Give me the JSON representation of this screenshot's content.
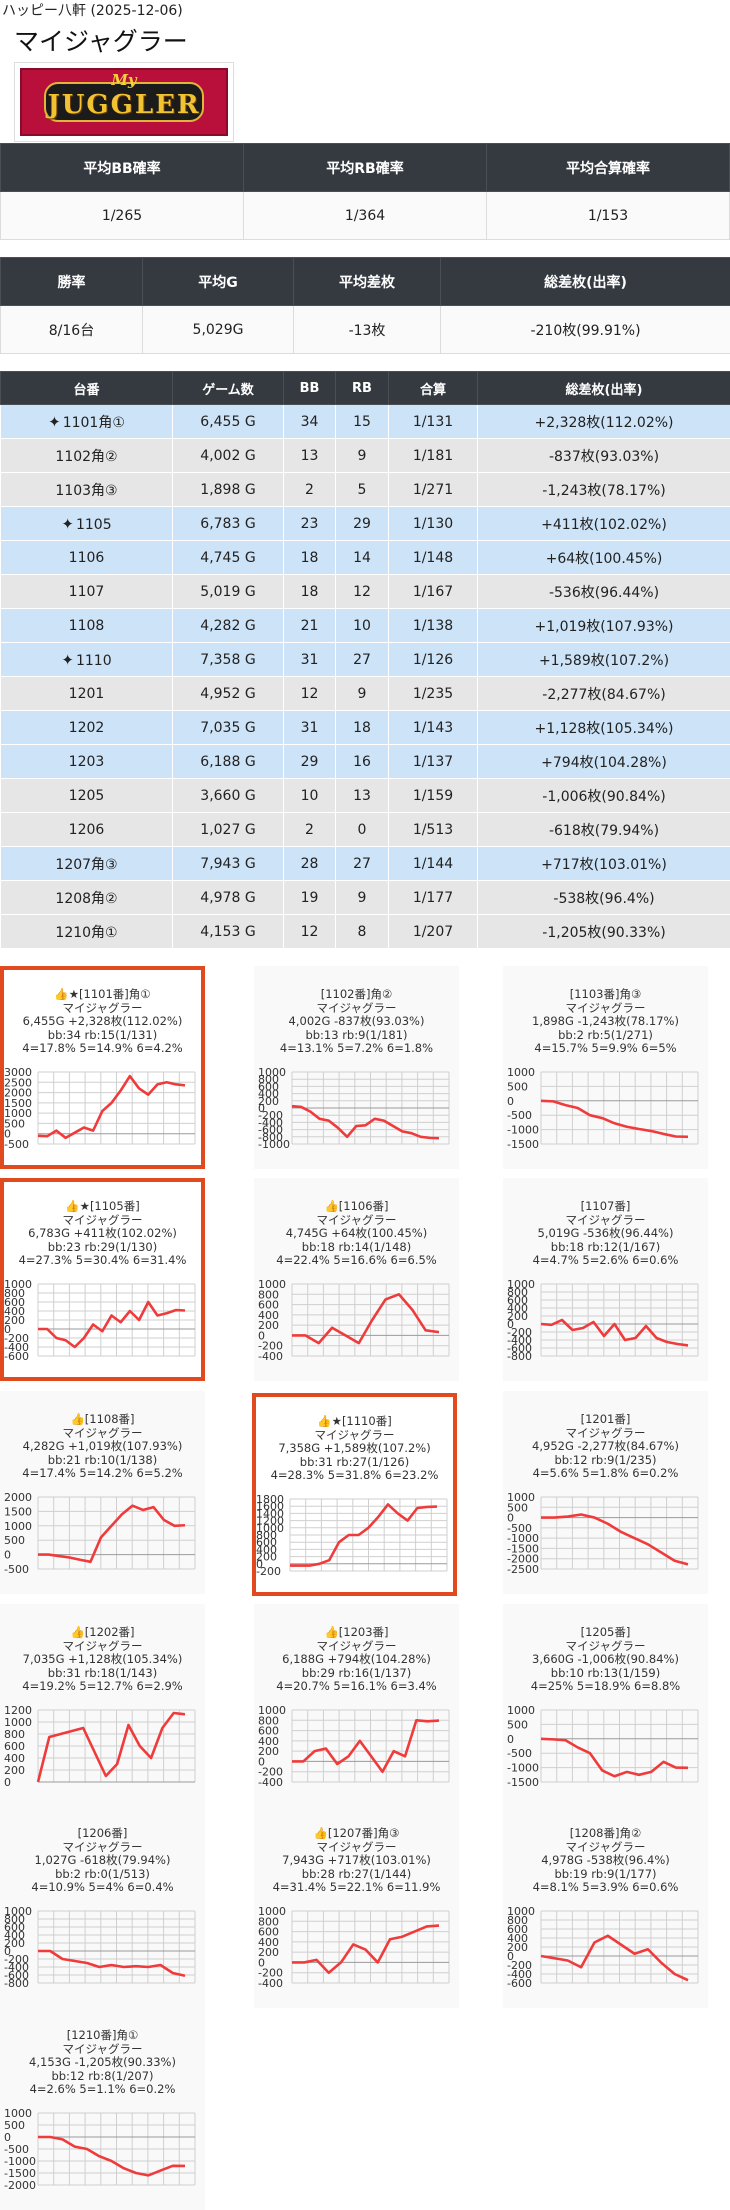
{
  "header": {
    "hall": "ハッピー八軒 (2025-12-06)",
    "title": "マイジャグラー"
  },
  "logo": {
    "line1": "My",
    "line2": "JUGGLER"
  },
  "stats1": {
    "headers": [
      "平均BB確率",
      "平均RB確率",
      "平均合算確率"
    ],
    "values": [
      "1/265",
      "1/364",
      "1/153"
    ]
  },
  "stats2": {
    "headers": [
      "勝率",
      "平均G",
      "平均差枚",
      "総差枚(出率)"
    ],
    "values": [
      "8/16台",
      "5,029G",
      "-13枚",
      "-210枚(99.91%)"
    ]
  },
  "machines": {
    "headers": [
      "台番",
      "ゲーム数",
      "BB",
      "RB",
      "合算",
      "総差枚(出率)"
    ],
    "rows": [
      {
        "num": "1101角①",
        "g": "6,455 G",
        "bb": "34",
        "rb": "15",
        "total": "1/131",
        "diff": "+2,328枚(112.02%)",
        "row": "blue",
        "star": true
      },
      {
        "num": "1102角②",
        "g": "4,002 G",
        "bb": "13",
        "rb": "9",
        "total": "1/181",
        "diff": "-837枚(93.03%)",
        "row": "gray",
        "star": false
      },
      {
        "num": "1103角③",
        "g": "1,898 G",
        "bb": "2",
        "rb": "5",
        "total": "1/271",
        "diff": "-1,243枚(78.17%)",
        "row": "gray",
        "star": false
      },
      {
        "num": "1105",
        "g": "6,783 G",
        "bb": "23",
        "rb": "29",
        "total": "1/130",
        "diff": "+411枚(102.02%)",
        "row": "blue",
        "star": true
      },
      {
        "num": "1106",
        "g": "4,745 G",
        "bb": "18",
        "rb": "14",
        "total": "1/148",
        "diff": "+64枚(100.45%)",
        "row": "blue",
        "star": false
      },
      {
        "num": "1107",
        "g": "5,019 G",
        "bb": "18",
        "rb": "12",
        "total": "1/167",
        "diff": "-536枚(96.44%)",
        "row": "gray",
        "star": false
      },
      {
        "num": "1108",
        "g": "4,282 G",
        "bb": "21",
        "rb": "10",
        "total": "1/138",
        "diff": "+1,019枚(107.93%)",
        "row": "blue",
        "star": false
      },
      {
        "num": "1110",
        "g": "7,358 G",
        "bb": "31",
        "rb": "27",
        "total": "1/126",
        "diff": "+1,589枚(107.2%)",
        "row": "blue",
        "star": true
      },
      {
        "num": "1201",
        "g": "4,952 G",
        "bb": "12",
        "rb": "9",
        "total": "1/235",
        "diff": "-2,277枚(84.67%)",
        "row": "gray",
        "star": false
      },
      {
        "num": "1202",
        "g": "7,035 G",
        "bb": "31",
        "rb": "18",
        "total": "1/143",
        "diff": "+1,128枚(105.34%)",
        "row": "blue",
        "star": false
      },
      {
        "num": "1203",
        "g": "6,188 G",
        "bb": "29",
        "rb": "16",
        "total": "1/137",
        "diff": "+794枚(104.28%)",
        "row": "blue",
        "star": false
      },
      {
        "num": "1205",
        "g": "3,660 G",
        "bb": "10",
        "rb": "13",
        "total": "1/159",
        "diff": "-1,006枚(90.84%)",
        "row": "gray",
        "star": false
      },
      {
        "num": "1206",
        "g": "1,027 G",
        "bb": "2",
        "rb": "0",
        "total": "1/513",
        "diff": "-618枚(79.94%)",
        "row": "gray",
        "star": false
      },
      {
        "num": "1207角③",
        "g": "7,943 G",
        "bb": "28",
        "rb": "27",
        "total": "1/144",
        "diff": "+717枚(103.01%)",
        "row": "blue",
        "star": false
      },
      {
        "num": "1208角②",
        "g": "4,978 G",
        "bb": "19",
        "rb": "9",
        "total": "1/177",
        "diff": "-538枚(96.4%)",
        "row": "gray",
        "star": false
      },
      {
        "num": "1210角①",
        "g": "4,153 G",
        "bb": "12",
        "rb": "8",
        "total": "1/207",
        "diff": "-1,205枚(90.33%)",
        "row": "gray",
        "star": false
      }
    ]
  },
  "cards": [
    {
      "title": "👍★[1101番]角①",
      "model": "マイジャグラー",
      "l1": "6,455G +2,328枚(112.02%)",
      "l2": "bb:34 rb:15(1/131)",
      "l3": "4=17.8% 5=14.9% 6=4.2%"
    },
    {
      "title": "[1102番]角②",
      "model": "マイジャグラー",
      "l1": "4,002G -837枚(93.03%)",
      "l2": "bb:13 rb:9(1/181)",
      "l3": "4=13.1% 5=7.2% 6=1.8%"
    },
    {
      "title": "[1103番]角③",
      "model": "マイジャグラー",
      "l1": "1,898G -1,243枚(78.17%)",
      "l2": "bb:2 rb:5(1/271)",
      "l3": "4=15.7% 5=9.9% 6=5%"
    },
    {
      "title": "👍★[1105番]",
      "model": "マイジャグラー",
      "l1": "6,783G +411枚(102.02%)",
      "l2": "bb:23 rb:29(1/130)",
      "l3": "4=27.3% 5=30.4% 6=31.4%"
    },
    {
      "title": "👍[1106番]",
      "model": "マイジャグラー",
      "l1": "4,745G +64枚(100.45%)",
      "l2": "bb:18 rb:14(1/148)",
      "l3": "4=22.4% 5=16.6% 6=6.5%"
    },
    {
      "title": "[1107番]",
      "model": "マイジャグラー",
      "l1": "5,019G -536枚(96.44%)",
      "l2": "bb:18 rb:12(1/167)",
      "l3": "4=4.7% 5=2.6% 6=0.6%"
    },
    {
      "title": "👍[1108番]",
      "model": "マイジャグラー",
      "l1": "4,282G +1,019枚(107.93%)",
      "l2": "bb:21 rb:10(1/138)",
      "l3": "4=17.4% 5=14.2% 6=5.2%"
    },
    {
      "title": "👍★[1110番]",
      "model": "マイジャグラー",
      "l1": "7,358G +1,589枚(107.2%)",
      "l2": "bb:31 rb:27(1/126)",
      "l3": "4=28.3% 5=31.8% 6=23.2%"
    },
    {
      "title": "[1201番]",
      "model": "マイジャグラー",
      "l1": "4,952G -2,277枚(84.67%)",
      "l2": "bb:12 rb:9(1/235)",
      "l3": "4=5.6% 5=1.8% 6=0.2%"
    },
    {
      "title": "👍[1202番]",
      "model": "マイジャグラー",
      "l1": "7,035G +1,128枚(105.34%)",
      "l2": "bb:31 rb:18(1/143)",
      "l3": "4=19.2% 5=12.7% 6=2.9%"
    },
    {
      "title": "👍[1203番]",
      "model": "マイジャグラー",
      "l1": "6,188G +794枚(104.28%)",
      "l2": "bb:29 rb:16(1/137)",
      "l3": "4=20.7% 5=16.1% 6=3.4%"
    },
    {
      "title": "[1205番]",
      "model": "マイジャグラー",
      "l1": "3,660G -1,006枚(90.84%)",
      "l2": "bb:10 rb:13(1/159)",
      "l3": "4=25% 5=18.9% 6=8.8%"
    },
    {
      "title": "[1206番]",
      "model": "マイジャグラー",
      "l1": "1,027G -618枚(79.94%)",
      "l2": "bb:2 rb:0(1/513)",
      "l3": "4=10.9% 5=4% 6=0.4%"
    },
    {
      "title": "👍[1207番]角③",
      "model": "マイジャグラー",
      "l1": "7,943G +717枚(103.01%)",
      "l2": "bb:28 rb:27(1/144)",
      "l3": "4=31.4% 5=22.1% 6=11.9%"
    },
    {
      "title": "[1208番]角②",
      "model": "マイジャグラー",
      "l1": "4,978G -538枚(96.4%)",
      "l2": "bb:19 rb:9(1/177)",
      "l3": "4=8.1% 5=3.9% 6=0.6%"
    },
    {
      "title": "[1210番]角①",
      "model": "マイジャグラー",
      "l1": "4,153G -1,205枚(90.33%)",
      "l2": "bb:12 rb:8(1/207)",
      "l3": "4=2.6% 5=1.1% 6=0.2%"
    }
  ],
  "chart_data": [
    {
      "type": "line",
      "ylim": [
        -500,
        3000
      ],
      "yticks": [
        -500,
        0,
        500,
        1000,
        1500,
        2000,
        2500,
        3000
      ],
      "values": [
        -100,
        -120,
        150,
        -200,
        50,
        300,
        150,
        1100,
        1500,
        2100,
        2800,
        2200,
        1900,
        2400,
        2500,
        2400,
        2350
      ],
      "color": "#ef3b3b"
    },
    {
      "type": "line",
      "ylim": [
        -1000,
        1000
      ],
      "yticks": [
        -1000,
        -800,
        -600,
        -400,
        -200,
        0,
        200,
        400,
        600,
        800,
        1000
      ],
      "values": [
        50,
        30,
        -100,
        -300,
        -350,
        -550,
        -800,
        -500,
        -480,
        -300,
        -350,
        -500,
        -650,
        -700,
        -800,
        -830,
        -840
      ],
      "color": "#ef3b3b"
    },
    {
      "type": "line",
      "ylim": [
        -1500,
        1000
      ],
      "yticks": [
        -1500,
        -1000,
        -500,
        0,
        500,
        1000
      ],
      "values": [
        0,
        -20,
        -150,
        -250,
        -500,
        -600,
        -780,
        -900,
        -980,
        -1050,
        -1150,
        -1240,
        -1250
      ],
      "color": "#ef3b3b"
    },
    {
      "type": "line",
      "ylim": [
        -600,
        1000
      ],
      "yticks": [
        -600,
        -400,
        -200,
        0,
        200,
        400,
        600,
        800,
        1000
      ],
      "values": [
        0,
        0,
        -200,
        -250,
        -400,
        -200,
        100,
        -50,
        300,
        150,
        400,
        200,
        600,
        300,
        350,
        420,
        411
      ],
      "color": "#ef3b3b"
    },
    {
      "type": "line",
      "ylim": [
        -400,
        1000
      ],
      "yticks": [
        -400,
        -200,
        0,
        200,
        400,
        600,
        800,
        1000
      ],
      "values": [
        0,
        0,
        -150,
        150,
        0,
        -150,
        300,
        700,
        800,
        500,
        100,
        64
      ],
      "color": "#ef3b3b"
    },
    {
      "type": "line",
      "ylim": [
        -800,
        1000
      ],
      "yticks": [
        -800,
        -600,
        -400,
        -200,
        0,
        200,
        400,
        600,
        800,
        1000
      ],
      "values": [
        0,
        -20,
        100,
        -150,
        -100,
        50,
        -300,
        0,
        -400,
        -350,
        -50,
        -350,
        -450,
        -500,
        -536
      ],
      "color": "#ef3b3b"
    },
    {
      "type": "line",
      "ylim": [
        -500,
        2000
      ],
      "yticks": [
        -500,
        0,
        500,
        1000,
        1500,
        2000
      ],
      "values": [
        0,
        0,
        -50,
        -100,
        -180,
        -250,
        600,
        1000,
        1400,
        1700,
        1550,
        1650,
        1200,
        1000,
        1019
      ],
      "color": "#ef3b3b"
    },
    {
      "type": "line",
      "ylim": [
        -200,
        1800
      ],
      "yticks": [
        -200,
        0,
        200,
        400,
        600,
        800,
        1000,
        1200,
        1400,
        1600,
        1800
      ],
      "values": [
        -50,
        -50,
        -50,
        0,
        100,
        600,
        800,
        800,
        1000,
        1300,
        1650,
        1400,
        1200,
        1550,
        1580,
        1589
      ],
      "color": "#ef3b3b"
    },
    {
      "type": "line",
      "ylim": [
        -2500,
        1000
      ],
      "yticks": [
        -2500,
        -2000,
        -1500,
        -1000,
        -500,
        0,
        500,
        1000
      ],
      "values": [
        0,
        0,
        50,
        150,
        0,
        -300,
        -700,
        -1000,
        -1300,
        -1700,
        -2100,
        -2277
      ],
      "color": "#ef3b3b"
    },
    {
      "type": "line",
      "ylim": [
        0,
        1200
      ],
      "yticks": [
        0,
        200,
        400,
        600,
        800,
        1000,
        1200
      ],
      "values": [
        0,
        750,
        800,
        850,
        900,
        500,
        100,
        300,
        950,
        600,
        400,
        900,
        1150,
        1128
      ],
      "color": "#ef3b3b"
    },
    {
      "type": "line",
      "ylim": [
        -400,
        1000
      ],
      "yticks": [
        -400,
        -200,
        0,
        200,
        400,
        600,
        800,
        1000
      ],
      "values": [
        0,
        0,
        200,
        250,
        -50,
        100,
        400,
        100,
        -200,
        200,
        100,
        800,
        780,
        794
      ],
      "color": "#ef3b3b"
    },
    {
      "type": "line",
      "ylim": [
        -1500,
        1000
      ],
      "yticks": [
        -1500,
        -1000,
        -500,
        0,
        500,
        1000
      ],
      "values": [
        0,
        -20,
        -50,
        -300,
        -500,
        -1100,
        -1300,
        -1150,
        -1250,
        -1150,
        -800,
        -1000,
        -1006
      ],
      "color": "#ef3b3b"
    },
    {
      "type": "line",
      "ylim": [
        -800,
        1000
      ],
      "yticks": [
        -800,
        -600,
        -400,
        -200,
        0,
        200,
        400,
        600,
        800,
        1000
      ],
      "values": [
        0,
        0,
        -200,
        -250,
        -300,
        -400,
        -350,
        -400,
        -380,
        -400,
        -350,
        -550,
        -618
      ],
      "color": "#ef3b3b"
    },
    {
      "type": "line",
      "ylim": [
        -400,
        1000
      ],
      "yticks": [
        -400,
        -200,
        0,
        200,
        400,
        600,
        800,
        1000
      ],
      "values": [
        0,
        0,
        50,
        -200,
        0,
        350,
        250,
        0,
        450,
        500,
        600,
        700,
        717
      ],
      "color": "#ef3b3b"
    },
    {
      "type": "line",
      "ylim": [
        -600,
        1000
      ],
      "yticks": [
        -600,
        -400,
        -200,
        0,
        200,
        400,
        600,
        800,
        1000
      ],
      "values": [
        0,
        -50,
        -100,
        -250,
        300,
        450,
        250,
        50,
        150,
        -150,
        -400,
        -538
      ],
      "color": "#ef3b3b"
    },
    {
      "type": "line",
      "ylim": [
        -2000,
        1000
      ],
      "yticks": [
        -2000,
        -1500,
        -1000,
        -500,
        0,
        500,
        1000
      ],
      "values": [
        0,
        0,
        -100,
        -400,
        -500,
        -800,
        -1000,
        -1300,
        -1500,
        -1600,
        -1400,
        -1200,
        -1205
      ],
      "color": "#ef3b3b"
    }
  ]
}
